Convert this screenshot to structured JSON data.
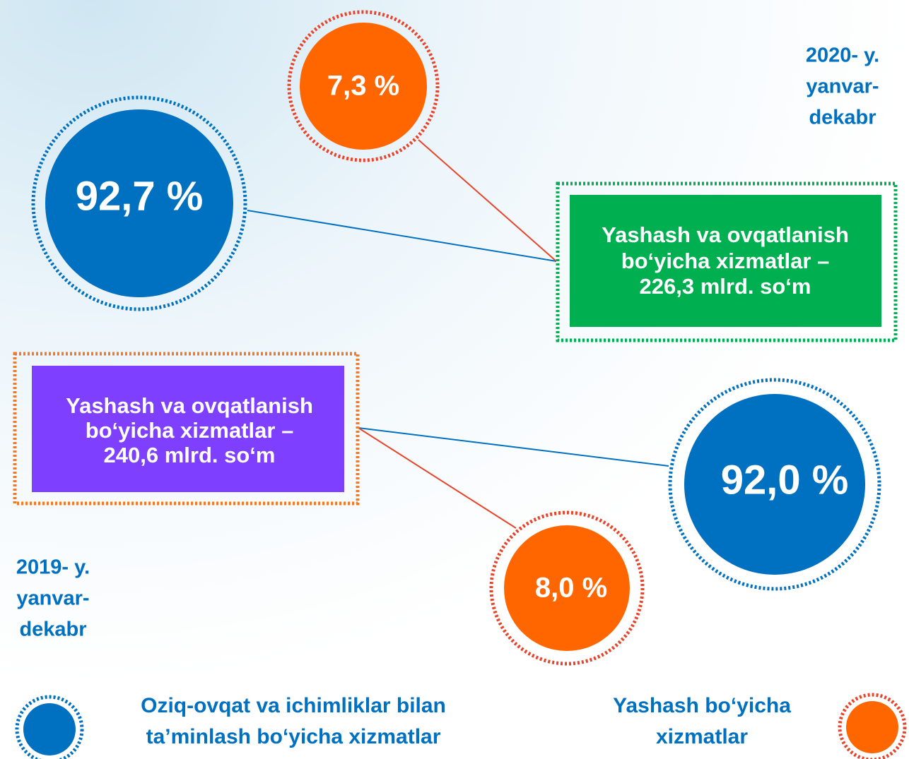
{
  "period_2020": {
    "label": [
      "2020- y.",
      "yanvar-",
      "dekabr"
    ],
    "box": [
      "Yashash va ovqatlanish",
      "bo‘yicha xizmatlar –",
      "226,3 mlrd. so‘m"
    ],
    "blue_circle": "92,7 %",
    "orange_circle": "7,3 %"
  },
  "period_2019": {
    "label": [
      "2019- y.",
      "yanvar-",
      "dekabr"
    ],
    "box": [
      "Yashash va ovqatlanish",
      "bo‘yicha xizmatlar –",
      "240,6 mlrd. so‘m"
    ],
    "blue_circle": "92,0 %",
    "orange_circle": "8,0 %"
  },
  "legend": [
    {
      "label": [
        "Oziq-ovqat va ichimliklar bilan",
        "ta’minlash bo‘yicha xizmatlar"
      ]
    },
    {
      "label": [
        "Yashash bo‘yicha",
        "xizmatlar"
      ]
    }
  ]
}
